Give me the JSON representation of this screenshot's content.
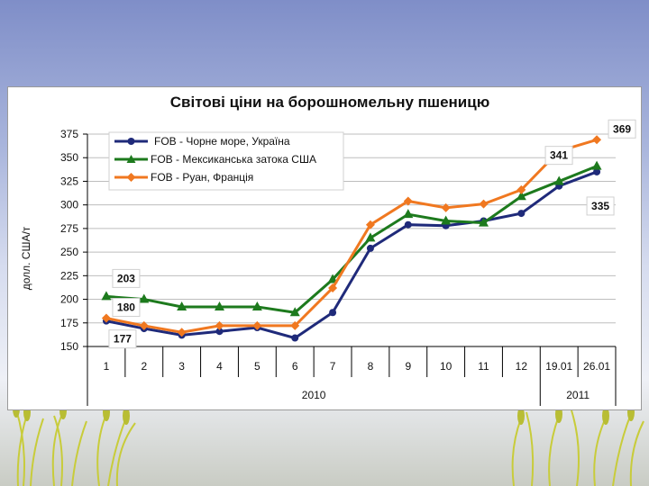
{
  "chart_data": {
    "type": "line",
    "title": "Світові ціни на борошномельну пшеницю",
    "xlabel": "",
    "ylabel": "долл. США/т",
    "ylim": [
      150,
      375
    ],
    "yticks": [
      150,
      175,
      200,
      225,
      250,
      275,
      300,
      325,
      350,
      375
    ],
    "grid": true,
    "legend_position": "top-left",
    "categories": [
      "1",
      "2",
      "3",
      "4",
      "5",
      "6",
      "7",
      "8",
      "9",
      "10",
      "11",
      "12",
      "19.01",
      "26.01"
    ],
    "category_groups": [
      {
        "label": "2010",
        "count": 12
      },
      {
        "label": "2011",
        "count": 2
      }
    ],
    "series": [
      {
        "name": "FOB - Чорне море, Україна",
        "color": "#1f2a7a",
        "marker": "circle",
        "values": [
          177,
          169,
          162,
          166,
          170,
          159,
          186,
          254,
          279,
          278,
          283,
          291,
          320,
          335
        ]
      },
      {
        "name": "FOB - Мексиканська затока США",
        "color": "#1d7a1d",
        "marker": "triangle",
        "values": [
          203,
          200,
          192,
          192,
          192,
          186,
          221,
          265,
          290,
          283,
          281,
          309,
          325,
          341
        ]
      },
      {
        "name": "FOB - Руан, Франція",
        "color": "#f07820",
        "marker": "diamond",
        "values": [
          180,
          172,
          165,
          172,
          172,
          172,
          212,
          279,
          304,
          297,
          301,
          316,
          357,
          369
        ]
      }
    ],
    "callouts": [
      {
        "text": "203",
        "series": 1,
        "index": 0,
        "pos": "above"
      },
      {
        "text": "180",
        "series": 2,
        "index": 0,
        "pos": "right"
      },
      {
        "text": "177",
        "series": 0,
        "index": 0,
        "pos": "below"
      },
      {
        "text": "369",
        "series": 2,
        "index": 13,
        "pos": "above"
      },
      {
        "text": "341",
        "series": 1,
        "index": 13,
        "pos": "above-left"
      },
      {
        "text": "335",
        "series": 0,
        "index": 13,
        "pos": "below"
      }
    ]
  }
}
